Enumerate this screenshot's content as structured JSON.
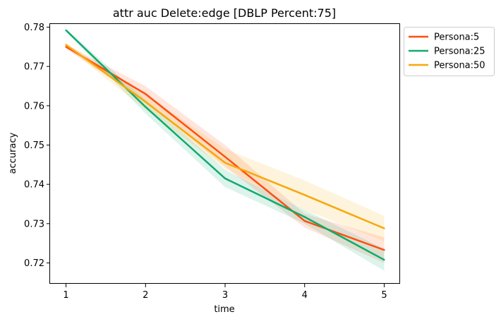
{
  "chart_data": {
    "type": "line",
    "title": "attr auc Delete:edge [DBLP Percent:75]",
    "xlabel": "time",
    "ylabel": "accuracy",
    "x": [
      1,
      2,
      3,
      4,
      5
    ],
    "x_ticks": [
      "1",
      "2",
      "3",
      "4",
      "5"
    ],
    "y_ticks": [
      "0.72",
      "0.73",
      "0.74",
      "0.75",
      "0.76",
      "0.77",
      "0.78"
    ],
    "xlim": [
      0.8,
      5.2
    ],
    "ylim": [
      0.7147,
      0.7808
    ],
    "grid": false,
    "legend_position": "outside-top-right",
    "series": [
      {
        "name": "Persona:5",
        "color": "#ff4e0f",
        "values": [
          0.775,
          0.763,
          0.747,
          0.7307,
          0.7233
        ],
        "band_lower": [
          0.7745,
          0.761,
          0.7445,
          0.729,
          0.72
        ],
        "band_upper": [
          0.7755,
          0.765,
          0.75,
          0.7325,
          0.7265
        ]
      },
      {
        "name": "Persona:25",
        "color": "#0fab6e",
        "values": [
          0.7792,
          0.7597,
          0.7415,
          0.7317,
          0.7208
        ],
        "band_lower": [
          0.7788,
          0.758,
          0.7393,
          0.73,
          0.718
        ],
        "band_upper": [
          0.7796,
          0.7615,
          0.7437,
          0.7335,
          0.7236
        ]
      },
      {
        "name": "Persona:50",
        "color": "#f5a80a",
        "values": [
          0.7755,
          0.761,
          0.7455,
          0.7373,
          0.7288
        ],
        "band_lower": [
          0.775,
          0.759,
          0.744,
          0.7335,
          0.7255
        ],
        "band_upper": [
          0.776,
          0.763,
          0.749,
          0.741,
          0.732
        ]
      }
    ]
  }
}
